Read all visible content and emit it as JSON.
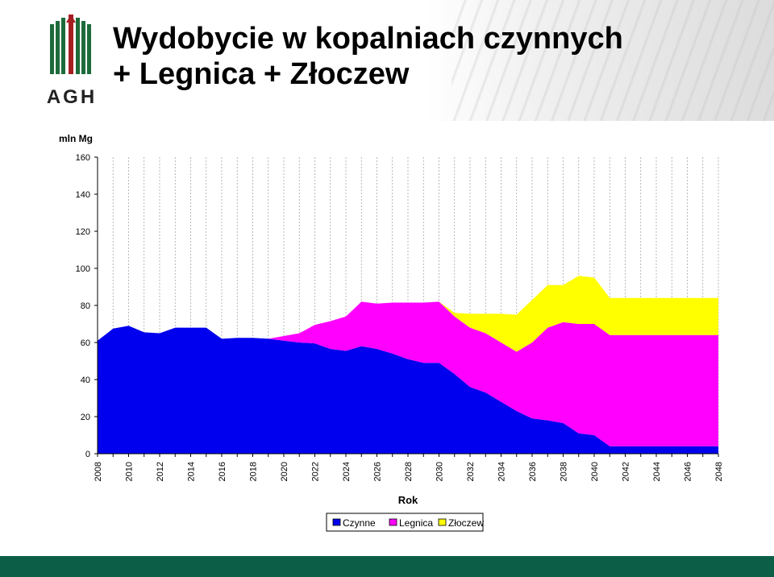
{
  "page": {
    "title_line1": "Wydobycie w kopalniach czynnych",
    "title_line2": "+ Legnica + Złoczew",
    "logo_text": "AGH",
    "colors": {
      "logo_green": "#1d6b3a",
      "logo_red": "#a61e22",
      "footer": "#0d5e46"
    }
  },
  "chart_data": {
    "type": "area",
    "stacked": true,
    "ylabel": "mln Mg",
    "xlabel": "Rok",
    "ylim": [
      0,
      160
    ],
    "yticks": [
      0,
      20,
      40,
      60,
      80,
      100,
      120,
      140,
      160
    ],
    "xticks": [
      2008,
      2010,
      2012,
      2014,
      2016,
      2018,
      2020,
      2022,
      2024,
      2026,
      2028,
      2030,
      2032,
      2034,
      2036,
      2038,
      2040,
      2042,
      2044,
      2046,
      2048
    ],
    "grid": "vertical dashed",
    "legend_position": "bottom",
    "x": [
      2008,
      2009,
      2010,
      2011,
      2012,
      2013,
      2014,
      2015,
      2016,
      2017,
      2018,
      2019,
      2020,
      2021,
      2022,
      2023,
      2024,
      2025,
      2026,
      2027,
      2028,
      2029,
      2030,
      2031,
      2032,
      2033,
      2034,
      2035,
      2036,
      2037,
      2038,
      2039,
      2040,
      2041,
      2042,
      2043,
      2044,
      2045,
      2046,
      2047,
      2048
    ],
    "series": [
      {
        "name": "Czynne",
        "color": "#0000ee",
        "values": [
          61,
          67.5,
          69,
          65.5,
          65,
          68,
          68,
          68,
          62,
          62.5,
          62.5,
          62,
          61,
          60,
          59.5,
          56.5,
          55.5,
          58,
          56.5,
          54,
          51,
          49,
          49,
          43,
          36,
          33,
          28,
          23,
          19,
          18,
          16.5,
          11,
          10,
          4,
          4,
          4,
          4,
          4,
          4,
          4,
          4
        ]
      },
      {
        "name": "Legnica",
        "color": "#ff00ff",
        "values": [
          0,
          0,
          0,
          0,
          0,
          0,
          0,
          0,
          0,
          0,
          0,
          0,
          2.5,
          5,
          10,
          15,
          18.5,
          24,
          24.5,
          27.5,
          30.5,
          32.5,
          33,
          31,
          32,
          32,
          32,
          32,
          41,
          50,
          54.5,
          59,
          60,
          60,
          60,
          60,
          60,
          60,
          60,
          60,
          60
        ]
      },
      {
        "name": "Złoczew",
        "color": "#ffff00",
        "values": [
          0,
          0,
          0,
          0,
          0,
          0,
          0,
          0,
          0,
          0,
          0,
          0,
          0,
          0,
          0,
          0,
          0,
          0,
          0,
          0,
          0,
          0,
          0,
          2,
          7.5,
          10.5,
          15.5,
          20,
          23,
          23,
          20,
          26,
          25,
          20,
          20,
          20,
          20,
          20,
          20,
          20,
          20
        ]
      }
    ]
  }
}
